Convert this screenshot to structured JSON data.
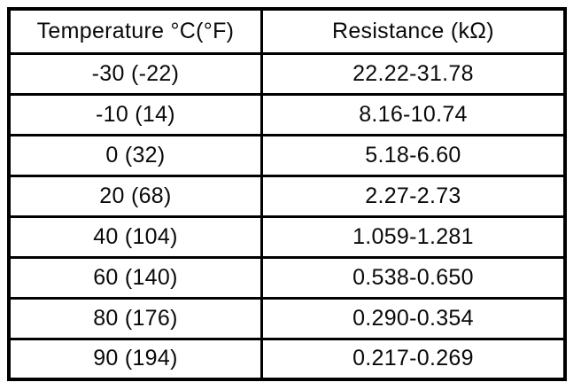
{
  "chart_data": {
    "type": "table",
    "title": "",
    "columns": [
      "Temperature °C(°F)",
      "Resistance (kΩ)"
    ],
    "rows": [
      [
        "-30 (-22)",
        "22.22-31.78"
      ],
      [
        "-10 (14)",
        "8.16-10.74"
      ],
      [
        "0 (32)",
        "5.18-6.60"
      ],
      [
        "20 (68)",
        "2.27-2.73"
      ],
      [
        "40 (104)",
        "1.059-1.281"
      ],
      [
        "60 (140)",
        "0.538-0.650"
      ],
      [
        "80 (176)",
        "0.290-0.354"
      ],
      [
        "90 (194)",
        "0.217-0.269"
      ]
    ],
    "temperature_c": [
      -30,
      -10,
      0,
      20,
      40,
      60,
      80,
      90
    ],
    "temperature_f": [
      -22,
      14,
      32,
      68,
      104,
      140,
      176,
      194
    ],
    "resistance_kohm_min": [
      22.22,
      8.16,
      5.18,
      2.27,
      1.059,
      0.538,
      0.29,
      0.217
    ],
    "resistance_kohm_max": [
      31.78,
      10.74,
      6.6,
      2.73,
      1.281,
      0.65,
      0.354,
      0.269
    ]
  },
  "colors": {
    "border": "#000000",
    "background": "#ffffff",
    "text": "#0a0a0a"
  }
}
